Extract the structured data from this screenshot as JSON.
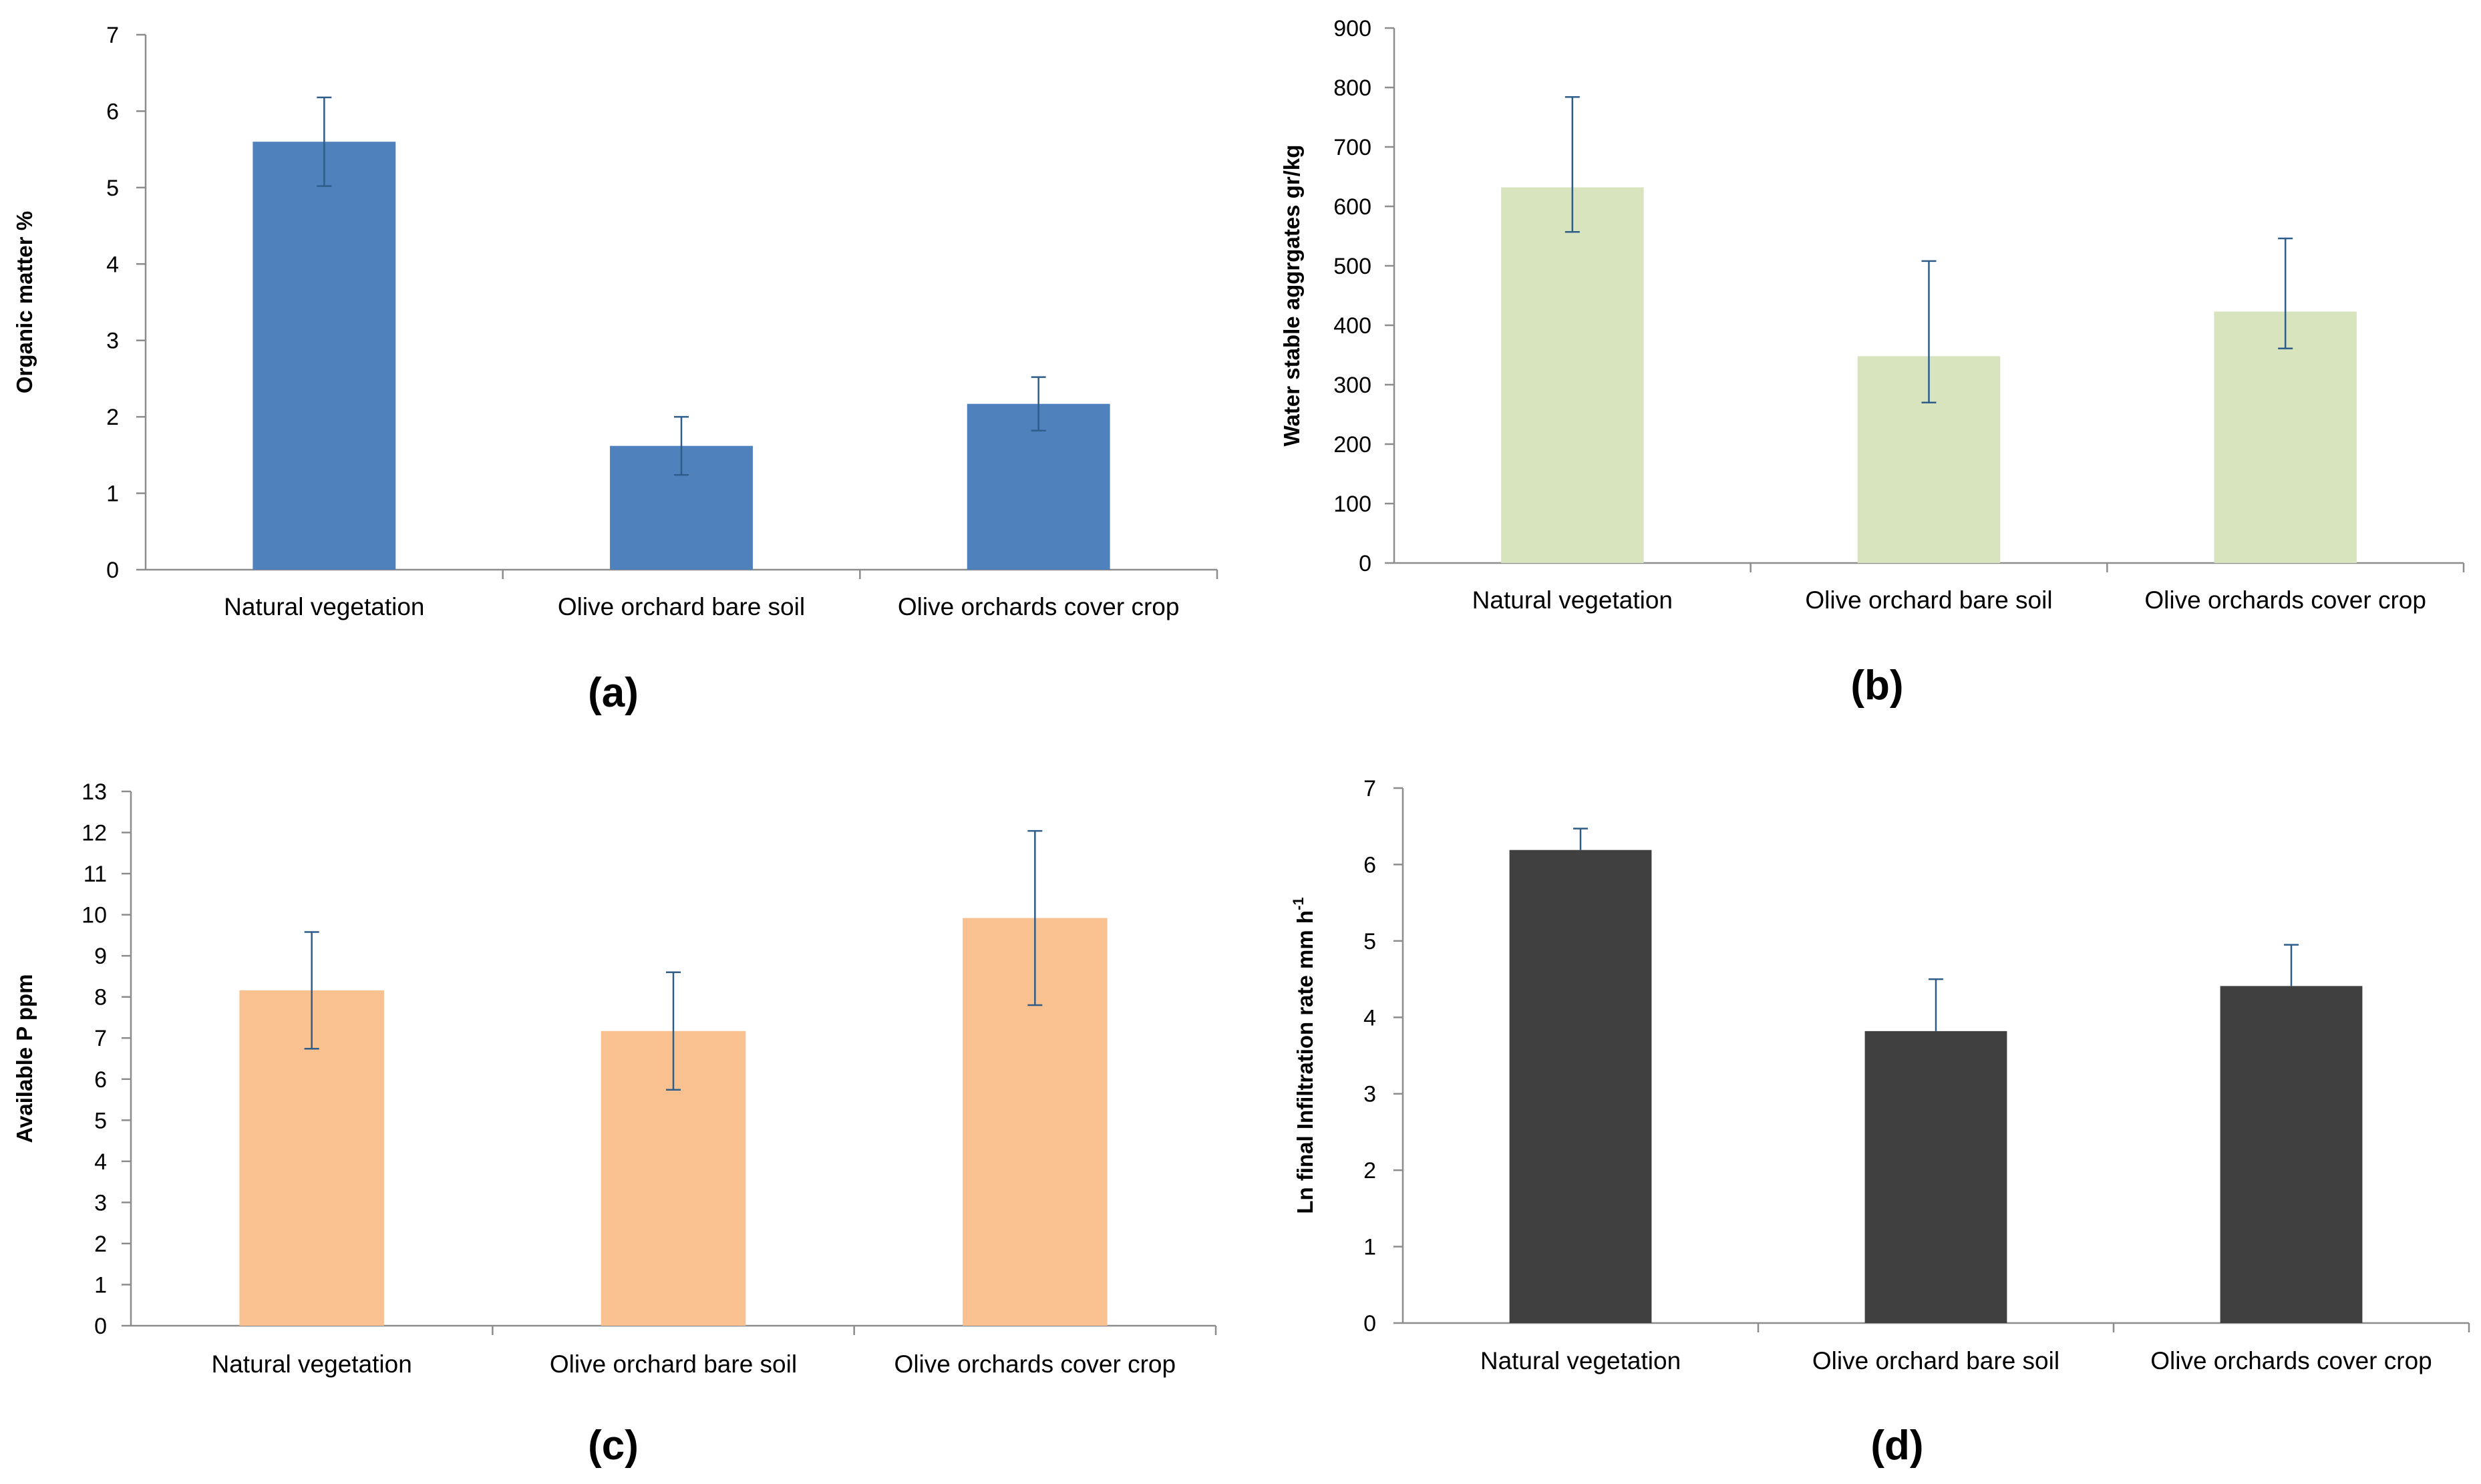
{
  "chart_data": [
    {
      "panel": "(a)",
      "type": "bar",
      "title": "",
      "xlabel": "",
      "ylabel": "Organic matter %",
      "ylim": [
        0,
        7
      ],
      "yticks": [
        "0",
        "1",
        "2",
        "3",
        "4",
        "5",
        "6",
        "7"
      ],
      "categories": [
        "Natural vegetation",
        "Olive orchard bare soil",
        "Olive orchards cover crop"
      ],
      "values": [
        5.6,
        1.62,
        2.17
      ],
      "errors": [
        0.58,
        0.38,
        0.35
      ],
      "color": "#4f81bd",
      "grid": false
    },
    {
      "panel": "(b)",
      "type": "bar",
      "title": "",
      "xlabel": "",
      "ylabel": "Water stable aggrgates gr/kg",
      "ylim": [
        0,
        900
      ],
      "yticks": [
        "0",
        "100",
        "200",
        "300",
        "400",
        "500",
        "600",
        "700",
        "800",
        "900"
      ],
      "categories": [
        "Natural vegetation",
        "Olive orchard bare soil",
        "Olive orchards cover crop"
      ],
      "values": [
        632,
        348,
        423
      ],
      "errors_low": [
        75,
        78,
        62
      ],
      "errors_high": [
        152,
        160,
        123
      ],
      "color": "#d7e4bd",
      "grid": false
    },
    {
      "panel": "(c)",
      "type": "bar",
      "title": "",
      "xlabel": "",
      "ylabel": "Available P ppm",
      "ylim": [
        0,
        13
      ],
      "yticks": [
        "0",
        "1",
        "2",
        "3",
        "4",
        "5",
        "6",
        "7",
        "8",
        "9",
        "10",
        "11",
        "12",
        "13"
      ],
      "categories": [
        "Natural vegetation",
        "Olive orchard bare soil",
        "Olive orchards cover crop"
      ],
      "values": [
        8.16,
        7.17,
        9.92
      ],
      "errors": [
        1.42,
        1.43,
        2.12
      ],
      "color": "#f9c090",
      "grid": false
    },
    {
      "panel": "(d)",
      "type": "bar",
      "title": "",
      "xlabel": "",
      "ylabel": "Ln final Infiltration rate  mm h",
      "ylabel_sup": "-1",
      "ylim": [
        0,
        7
      ],
      "yticks": [
        "0",
        "1",
        "2",
        "3",
        "4",
        "5",
        "6",
        "7"
      ],
      "categories": [
        "Natural vegetation",
        "Olive orchard bare soil",
        "Olive orchards cover crop"
      ],
      "values": [
        6.19,
        3.82,
        4.41
      ],
      "errors_low": [
        0,
        0,
        0
      ],
      "errors_high": [
        0.28,
        0.68,
        0.54
      ],
      "color": "#404040",
      "grid": false
    }
  ]
}
